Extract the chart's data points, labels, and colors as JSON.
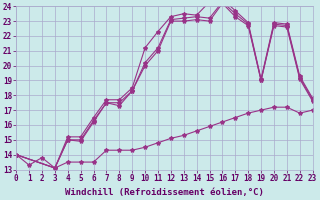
{
  "xlabel": "Windchill (Refroidissement éolien,°C)",
  "background_color": "#cceaea",
  "grid_color": "#aaaacc",
  "line_color": "#993388",
  "x_ticks": [
    0,
    1,
    2,
    3,
    4,
    5,
    6,
    7,
    8,
    9,
    10,
    11,
    12,
    13,
    14,
    15,
    16,
    17,
    18,
    19,
    20,
    21,
    22,
    23
  ],
  "y_ticks": [
    13,
    14,
    15,
    16,
    17,
    18,
    19,
    20,
    21,
    22,
    23,
    24
  ],
  "xlim": [
    0,
    23
  ],
  "ylim": [
    13,
    24
  ],
  "line_straight_x": [
    0,
    1,
    2,
    3,
    4,
    5,
    6,
    7,
    8,
    9,
    10,
    11,
    12,
    13,
    14,
    15,
    16,
    17,
    18,
    19,
    20,
    21,
    22,
    23
  ],
  "line_straight_y": [
    14.0,
    13.3,
    13.8,
    13.1,
    13.5,
    13.5,
    13.5,
    14.3,
    14.3,
    14.3,
    14.5,
    14.8,
    15.1,
    15.3,
    15.6,
    15.9,
    16.2,
    16.5,
    16.8,
    17.0,
    17.2,
    17.2,
    16.8,
    17.0
  ],
  "line_top_x": [
    0,
    3,
    4,
    5,
    6,
    7,
    8,
    9,
    10,
    11,
    12,
    13,
    14,
    15,
    16,
    17,
    18,
    19,
    20,
    21,
    22,
    23
  ],
  "line_top_y": [
    14.0,
    13.1,
    15.2,
    15.2,
    16.5,
    17.7,
    17.7,
    18.5,
    21.2,
    22.3,
    23.3,
    23.5,
    23.4,
    24.3,
    24.5,
    23.7,
    22.9,
    19.1,
    22.9,
    22.8,
    19.3,
    17.8
  ],
  "line_mid_x": [
    0,
    3,
    4,
    5,
    6,
    7,
    8,
    9,
    10,
    11,
    12,
    13,
    14,
    15,
    16,
    17,
    18,
    19,
    20,
    21,
    22,
    23
  ],
  "line_mid_y": [
    14.0,
    13.1,
    15.0,
    15.0,
    16.3,
    17.5,
    17.5,
    18.3,
    20.2,
    21.2,
    23.1,
    23.2,
    23.3,
    23.2,
    24.3,
    23.5,
    22.8,
    19.0,
    22.8,
    22.7,
    19.2,
    17.7
  ],
  "line_low_x": [
    0,
    3,
    4,
    5,
    6,
    7,
    8,
    9,
    10,
    11,
    12,
    13,
    14,
    15,
    16,
    17,
    18,
    19,
    20,
    21,
    22,
    23
  ],
  "line_low_y": [
    14.0,
    13.1,
    15.0,
    14.9,
    16.2,
    17.5,
    17.3,
    18.3,
    20.0,
    21.0,
    23.0,
    23.0,
    23.1,
    23.0,
    24.2,
    23.3,
    22.7,
    19.0,
    22.7,
    22.6,
    19.1,
    17.6
  ],
  "font_color": "#660066",
  "tick_fontsize": 5.5,
  "label_fontsize": 6.5
}
